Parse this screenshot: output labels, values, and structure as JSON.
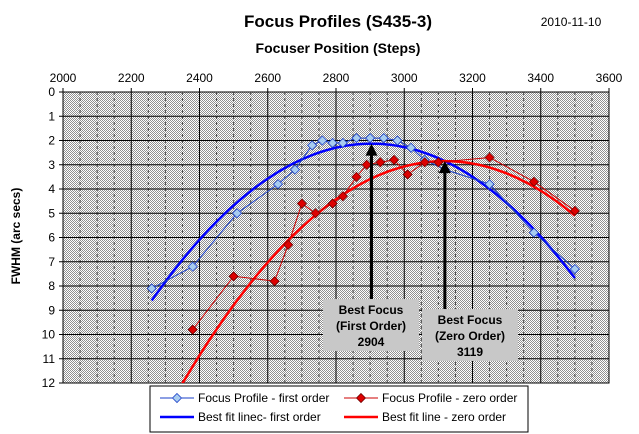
{
  "date": "2010-11-10",
  "chart_data": {
    "type": "scatter",
    "title": "Focus Profiles (S435-3)",
    "xlabel": "Focuser Position (Steps)",
    "ylabel": "FWHM (arc secs)",
    "xlim": [
      2000,
      3600
    ],
    "ylim": [
      0,
      12
    ],
    "x_ticks": [
      "2000",
      "2200",
      "2400",
      "2600",
      "2800",
      "3000",
      "3200",
      "3400",
      "3600"
    ],
    "y_ticks": [
      "0",
      "1",
      "2",
      "3",
      "4",
      "5",
      "6",
      "7",
      "8",
      "9",
      "10",
      "11",
      "12"
    ],
    "y_reversed": true,
    "x_axis_position": "top",
    "grid": true,
    "legend_position": "bottom",
    "series": [
      {
        "name": "Focus Profile - first order",
        "kind": "markers-line",
        "color": "#1a3fc8",
        "marker": "diamond",
        "marker_fill": "#a8ccf0",
        "points": [
          [
            2260,
            8.1
          ],
          [
            2380,
            7.2
          ],
          [
            2510,
            5.0
          ],
          [
            2630,
            3.8
          ],
          [
            2680,
            3.2
          ],
          [
            2730,
            2.2
          ],
          [
            2760,
            2.0
          ],
          [
            2790,
            2.1
          ],
          [
            2820,
            2.1
          ],
          [
            2860,
            1.9
          ],
          [
            2900,
            1.9
          ],
          [
            2940,
            1.9
          ],
          [
            2980,
            2.0
          ],
          [
            3020,
            2.3
          ],
          [
            3060,
            2.8
          ],
          [
            3120,
            3.2
          ],
          [
            3250,
            3.8
          ],
          [
            3380,
            5.8
          ],
          [
            3500,
            7.3
          ]
        ]
      },
      {
        "name": "Focus Profile - zero order",
        "kind": "markers-line",
        "color": "#cc0000",
        "marker": "diamond",
        "marker_fill": "#dd0000",
        "points": [
          [
            2380,
            9.8
          ],
          [
            2500,
            7.6
          ],
          [
            2620,
            7.8
          ],
          [
            2660,
            6.3
          ],
          [
            2700,
            4.6
          ],
          [
            2740,
            5.0
          ],
          [
            2790,
            4.6
          ],
          [
            2820,
            4.3
          ],
          [
            2860,
            3.5
          ],
          [
            2890,
            3.0
          ],
          [
            2930,
            2.9
          ],
          [
            2970,
            2.8
          ],
          [
            3010,
            3.4
          ],
          [
            3060,
            2.9
          ],
          [
            3100,
            2.9
          ],
          [
            3250,
            2.7
          ],
          [
            3380,
            3.7
          ],
          [
            3500,
            4.9
          ]
        ]
      },
      {
        "name": "Best fit linec- first order",
        "kind": "fit",
        "color": "#0000ff",
        "vertex": [
          2904,
          2.13
        ],
        "a": 1.56e-05,
        "x_range": [
          2260,
          3500
        ]
      },
      {
        "name": "Best fit line - zero order",
        "kind": "fit",
        "color": "#ff0000",
        "vertex": [
          3119,
          2.85
        ],
        "a": 1.55e-05,
        "x_range": [
          2300,
          3500
        ]
      }
    ],
    "annotations": [
      {
        "lines": [
          "Best Focus",
          "(First Order)",
          "2904"
        ],
        "x": 2904,
        "y": 2.13
      },
      {
        "lines": [
          "Best Focus",
          "(Zero Order)",
          "3119"
        ],
        "x": 3119,
        "y": 2.85
      }
    ]
  }
}
